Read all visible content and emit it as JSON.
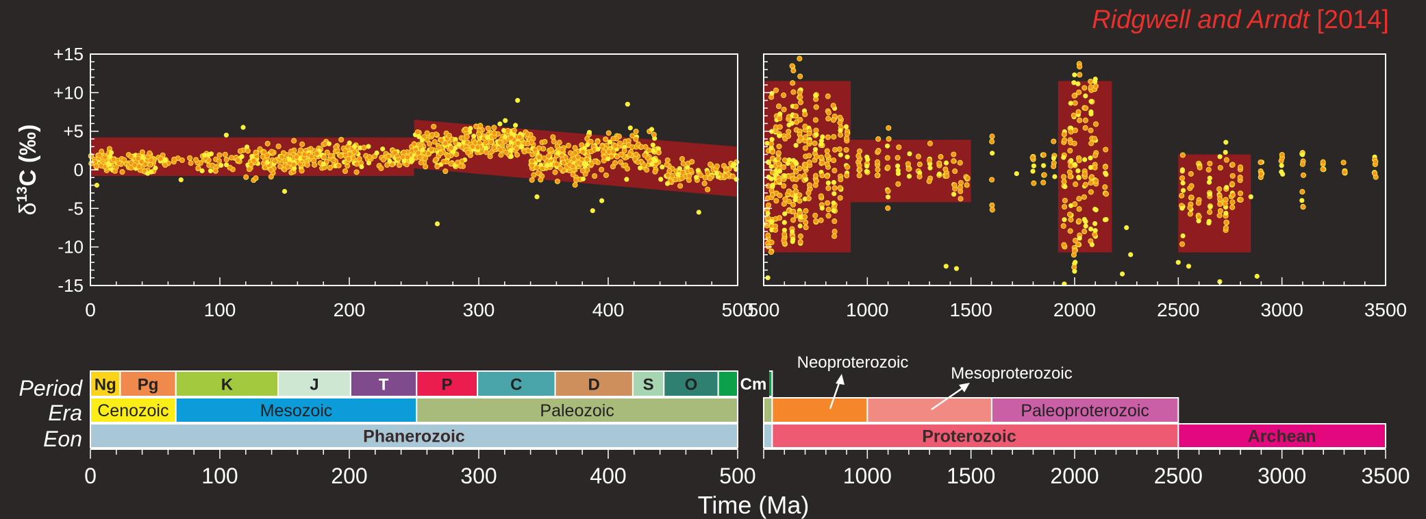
{
  "citation": {
    "authors": "Ridgwell and Arndt",
    "year": "[2014]"
  },
  "colors": {
    "background": "#2a2726",
    "envelope": "#8f1d1f",
    "point_fill": "#f7941d",
    "point_outline": "#f5e93a",
    "yellow_point": "#f7f03c",
    "pink_trend": "#f0879e",
    "citation": "#e8302c"
  },
  "chart_data": [
    {
      "type": "scatter",
      "panel": "phanerozoic",
      "ylabel_prefix": "δ",
      "ylabel_superscript": "13",
      "ylabel_suffix": "C (‰)",
      "xlim": [
        0,
        500
      ],
      "ylim": [
        -15,
        15
      ],
      "y_ticks": [
        15,
        10,
        5,
        0,
        -5,
        -10,
        -15
      ],
      "y_tick_labels": [
        "+15",
        "+10",
        "+5",
        "0",
        "-5",
        "-10",
        "-15"
      ],
      "x_ticks": [
        0,
        100,
        200,
        300,
        400,
        500
      ],
      "x_tick_labels": [
        "0",
        "100",
        "200",
        "300",
        "400",
        "500"
      ],
      "envelopes": [
        {
          "x": [
            0,
            250,
            250,
            0
          ],
          "y": [
            4.2,
            4.2,
            -0.8,
            -0.8
          ]
        },
        {
          "x": [
            250,
            500,
            500,
            250
          ],
          "y": [
            6.5,
            3.0,
            -3.5,
            0.2
          ]
        }
      ],
      "segments": [
        {
          "x0": 0,
          "x1": 50,
          "ymin": -1.5,
          "ymax": 3.5,
          "density": 120
        },
        {
          "x0": 50,
          "x1": 120,
          "ymin": -1.0,
          "ymax": 3.5,
          "density": 60
        },
        {
          "x0": 120,
          "x1": 165,
          "ymin": -2.5,
          "ymax": 5.0,
          "density": 110
        },
        {
          "x0": 165,
          "x1": 210,
          "ymin": -1.5,
          "ymax": 5.0,
          "density": 110
        },
        {
          "x0": 210,
          "x1": 250,
          "ymin": -1.0,
          "ymax": 4.0,
          "density": 60
        },
        {
          "x0": 250,
          "x1": 290,
          "ymin": -2.0,
          "ymax": 7.5,
          "density": 120
        },
        {
          "x0": 290,
          "x1": 340,
          "ymin": 0.5,
          "ymax": 7.0,
          "density": 170
        },
        {
          "x0": 340,
          "x1": 380,
          "ymin": -3.5,
          "ymax": 6.0,
          "density": 130
        },
        {
          "x0": 380,
          "x1": 440,
          "ymin": -3.0,
          "ymax": 7.5,
          "density": 150
        },
        {
          "x0": 440,
          "x1": 500,
          "ymin": -3.0,
          "ymax": 2.5,
          "density": 90
        }
      ],
      "outliers": [
        [
          5,
          -2.0
        ],
        [
          70,
          -1.3
        ],
        [
          105,
          4.5
        ],
        [
          118,
          5.5
        ],
        [
          150,
          -2.8
        ],
        [
          268,
          -7.0
        ],
        [
          330,
          9.0
        ],
        [
          345,
          -3.5
        ],
        [
          388,
          -5.3
        ],
        [
          395,
          -4.0
        ],
        [
          415,
          8.5
        ],
        [
          470,
          -5.5
        ]
      ]
    },
    {
      "type": "scatter",
      "panel": "precambrian",
      "xlim": [
        500,
        3500
      ],
      "ylim": [
        -15,
        15
      ],
      "x_ticks": [
        500,
        1000,
        1500,
        2000,
        2500,
        3000,
        3500
      ],
      "x_tick_labels": [
        "500",
        "1000",
        "1500",
        "2000",
        "2500",
        "3000",
        "3500"
      ],
      "envelopes": [
        {
          "x": [
            500,
            920,
            920,
            500
          ],
          "y": [
            11.5,
            11.5,
            -10.7,
            -10.7
          ]
        },
        {
          "x": [
            920,
            1500,
            1500,
            920
          ],
          "y": [
            3.9,
            3.9,
            -4.2,
            -4.2
          ]
        },
        {
          "x": [
            1920,
            2180,
            2180,
            1920
          ],
          "y": [
            11.5,
            11.5,
            -10.7,
            -10.7
          ]
        },
        {
          "x": [
            2500,
            2850,
            2850,
            2500
          ],
          "y": [
            2.0,
            2.0,
            -10.7,
            -10.7
          ]
        }
      ],
      "columns": [
        [
          520,
          -10,
          6,
          20
        ],
        [
          540,
          -11,
          10,
          26
        ],
        [
          560,
          -8,
          11,
          22
        ],
        [
          575,
          -9,
          9,
          20
        ],
        [
          600,
          -10,
          11,
          22
        ],
        [
          620,
          -7,
          7,
          16
        ],
        [
          640,
          -11,
          14,
          26
        ],
        [
          655,
          -6,
          10,
          18
        ],
        [
          675,
          -11,
          15,
          28
        ],
        [
          700,
          -8,
          11,
          22
        ],
        [
          720,
          -6,
          9,
          16
        ],
        [
          750,
          -9,
          10,
          20
        ],
        [
          780,
          -7,
          8,
          16
        ],
        [
          810,
          -6,
          10,
          18
        ],
        [
          840,
          -10,
          9,
          20
        ],
        [
          870,
          -5,
          7,
          14
        ],
        [
          900,
          -3,
          6,
          12
        ],
        [
          960,
          -1,
          4,
          8
        ],
        [
          1000,
          -1,
          2,
          6
        ],
        [
          1050,
          -1,
          4,
          8
        ],
        [
          1100,
          -5,
          6,
          10
        ],
        [
          1150,
          -3,
          3,
          6
        ],
        [
          1200,
          -1,
          3,
          6
        ],
        [
          1250,
          -1,
          2,
          5
        ],
        [
          1300,
          -2,
          4,
          8
        ],
        [
          1350,
          -1,
          2,
          5
        ],
        [
          1380,
          -4,
          1,
          6
        ],
        [
          1420,
          -6,
          2,
          8
        ],
        [
          1450,
          -4,
          1,
          6
        ],
        [
          1480,
          -3,
          0,
          5
        ],
        [
          1600,
          -7,
          5,
          6
        ],
        [
          1800,
          -2,
          2,
          6
        ],
        [
          1850,
          -2,
          2,
          6
        ],
        [
          1900,
          -1,
          4,
          6
        ],
        [
          1950,
          -10,
          6,
          16
        ],
        [
          1980,
          -9,
          9,
          18
        ],
        [
          2000,
          -14,
          13,
          22
        ],
        [
          2020,
          -10,
          14,
          22
        ],
        [
          2050,
          -8,
          11,
          18
        ],
        [
          2080,
          -10,
          12,
          20
        ],
        [
          2100,
          -9,
          13,
          20
        ],
        [
          2150,
          -7,
          5,
          10
        ],
        [
          2520,
          -10,
          2,
          12
        ],
        [
          2560,
          -6,
          0,
          10
        ],
        [
          2600,
          -7,
          1,
          10
        ],
        [
          2650,
          -8,
          1,
          12
        ],
        [
          2700,
          -7,
          3,
          12
        ],
        [
          2730,
          -10,
          4,
          14
        ],
        [
          2760,
          -5,
          2,
          10
        ],
        [
          2800,
          -4,
          1,
          8
        ],
        [
          2900,
          -1,
          1,
          6
        ],
        [
          3000,
          -1,
          2,
          6
        ],
        [
          3100,
          -5,
          3,
          10
        ],
        [
          3200,
          0,
          1,
          4
        ],
        [
          3300,
          -1,
          1,
          4
        ],
        [
          3450,
          -1,
          2,
          8
        ]
      ],
      "outliers": [
        [
          520,
          -14
        ],
        [
          1380,
          -12.5
        ],
        [
          1430,
          -12.8
        ],
        [
          1720,
          -0.5
        ],
        [
          1950,
          -14.8
        ],
        [
          2230,
          -13.5
        ],
        [
          2250,
          -7.5
        ],
        [
          2270,
          -11
        ],
        [
          2500,
          -12
        ],
        [
          2550,
          -12.5
        ],
        [
          2700,
          -14.5
        ],
        [
          2850,
          -3.5
        ],
        [
          2880,
          -13.8
        ]
      ]
    }
  ],
  "timescale": {
    "row_labels": {
      "period": "Period",
      "era": "Era",
      "eon": "Eon"
    },
    "periods": [
      {
        "label": "Ng",
        "start": 0,
        "end": 23,
        "color": "#fcd31b"
      },
      {
        "label": "Pg",
        "start": 23,
        "end": 66,
        "color": "#f08a4c"
      },
      {
        "label": "K",
        "start": 66,
        "end": 145,
        "color": "#a3c93e"
      },
      {
        "label": "J",
        "start": 145,
        "end": 201,
        "color": "#cde7d3"
      },
      {
        "label": "T",
        "start": 201,
        "end": 252,
        "color": "#7f4b8c"
      },
      {
        "label": "P",
        "start": 252,
        "end": 299,
        "color": "#eb1d4f"
      },
      {
        "label": "C",
        "start": 299,
        "end": 359,
        "color": "#4aa5aa"
      },
      {
        "label": "D",
        "start": 359,
        "end": 419,
        "color": "#cf8f5d"
      },
      {
        "label": "S",
        "start": 419,
        "end": 443,
        "color": "#a5d6b1"
      },
      {
        "label": "O",
        "start": 443,
        "end": 485,
        "color": "#2f8070"
      },
      {
        "label": "Cm",
        "start": 485,
        "end": 541,
        "color": "#0aa14a"
      }
    ],
    "eras": [
      {
        "label": "Cenozoic",
        "start": 0,
        "end": 66,
        "color": "#fbed17"
      },
      {
        "label": "Mesozoic",
        "start": 66,
        "end": 252,
        "color": "#0b9cd9"
      },
      {
        "label": "Paleozoic",
        "start": 252,
        "end": 541,
        "color": "#a9bb7a"
      },
      {
        "label": "",
        "start": 541,
        "end": 1000,
        "color": "#f5862a"
      },
      {
        "label": "",
        "start": 1000,
        "end": 1600,
        "color": "#f28a84"
      },
      {
        "label": "Paleoproterozoic",
        "start": 1600,
        "end": 2500,
        "color": "#cb5fa6"
      }
    ],
    "eons": [
      {
        "label": "Phanerozoic",
        "start": 0,
        "end": 541,
        "color": "#a8c8d8"
      },
      {
        "label": "Proterozoic",
        "start": 541,
        "end": 2500,
        "color": "#ef5a73"
      },
      {
        "label": "Archean",
        "start": 2500,
        "end": 3500,
        "color": "#e3087e"
      }
    ],
    "callouts": [
      {
        "label": "Neoproterozoic",
        "target_ma": 750
      },
      {
        "label": "Mesoproterozoic",
        "target_ma": 1150
      }
    ],
    "x_ticks": [
      0,
      100,
      200,
      300,
      400,
      500,
      1000,
      1500,
      2000,
      2500,
      3000,
      3500
    ],
    "x_tick_labels": [
      "0",
      "100",
      "200",
      "300",
      "400",
      "500",
      "1000",
      "1500",
      "2000",
      "2500",
      "3000",
      "3500"
    ],
    "xlabel": "Time (Ma)"
  }
}
